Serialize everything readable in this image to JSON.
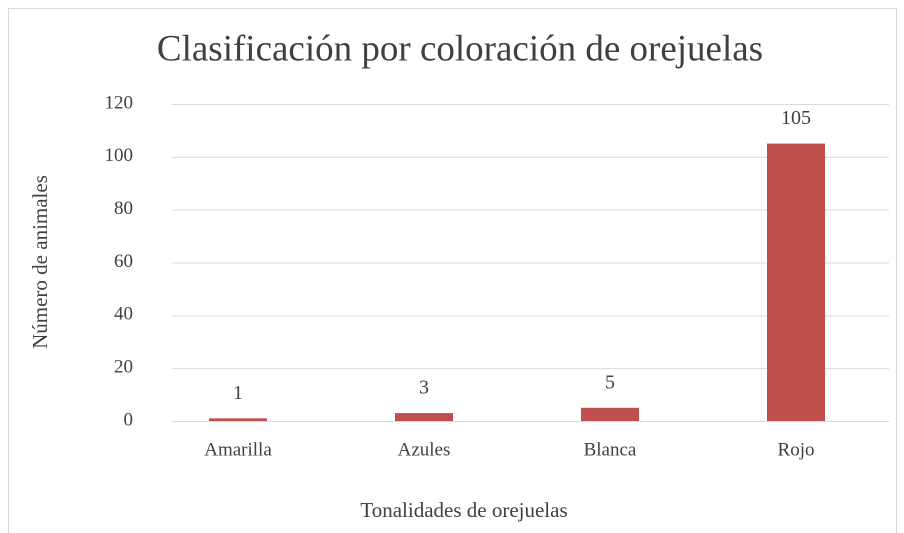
{
  "chart_data": {
    "type": "bar",
    "title": "Clasificación por coloración de orejuelas",
    "x_label": "Tonalidades de orejuelas",
    "y_label": "Número de animales",
    "categories": [
      "Amarilla",
      "Azules",
      "Blanca",
      "Rojo"
    ],
    "values": [
      1,
      3,
      5,
      105
    ],
    "color": "#c0504d",
    "ylim": [
      0,
      120
    ],
    "yticks": [
      0,
      20,
      40,
      60,
      80,
      100,
      120
    ],
    "grid": true
  }
}
